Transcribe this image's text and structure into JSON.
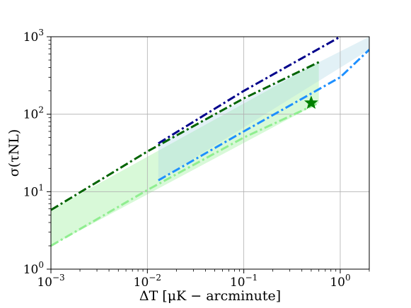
{
  "chart_data": {
    "type": "line",
    "xscale": "log",
    "yscale": "log",
    "xlim": [
      0.001,
      2
    ],
    "ylim": [
      1,
      1000
    ],
    "grid": true,
    "xlabel": "ΔT [μK − arcminute]",
    "ylabel": "σ(τNL)",
    "x_ticks": [
      {
        "value": 0.001,
        "base": "10",
        "exp": "−3"
      },
      {
        "value": 0.01,
        "base": "10",
        "exp": "−2"
      },
      {
        "value": 0.1,
        "base": "10",
        "exp": "−1"
      },
      {
        "value": 1,
        "base": "10",
        "exp": "0"
      }
    ],
    "y_ticks": [
      {
        "value": 1,
        "base": "10",
        "exp": "0"
      },
      {
        "value": 10,
        "base": "10",
        "exp": "1"
      },
      {
        "value": 100,
        "base": "10",
        "exp": "2"
      },
      {
        "value": 1000,
        "base": "10",
        "exp": "3"
      }
    ],
    "series": [
      {
        "color": "#006400",
        "style": "dash-dot",
        "x": [
          0.001,
          0.01,
          0.1,
          0.6
        ],
        "y": [
          5.8,
          33,
          160,
          470
        ]
      },
      {
        "color": "#90EE90",
        "style": "dash-dot",
        "x": [
          0.001,
          0.01,
          0.1,
          0.6
        ],
        "y": [
          2.0,
          10.5,
          50,
          140
        ]
      },
      {
        "color": "#00008B",
        "style": "dash-dot",
        "x": [
          0.013,
          0.1,
          1.0
        ],
        "y": [
          42,
          200,
          1000
        ]
      },
      {
        "color": "#1E90FF",
        "style": "dash-dot",
        "x": [
          0.013,
          0.1,
          1.0,
          2.0
        ],
        "y": [
          14,
          60,
          300,
          680
        ]
      }
    ],
    "bands": [
      {
        "color": "#90EE90",
        "opacity": 0.35,
        "x": [
          0.001,
          0.6
        ],
        "lower": [
          2.0,
          140
        ],
        "upper": [
          5.8,
          470
        ]
      },
      {
        "color": "#ADD8E6",
        "opacity": 0.35,
        "x": [
          0.013,
          2.0
        ],
        "lower": [
          14,
          680
        ],
        "upper": [
          42,
          1000
        ]
      }
    ],
    "markers": [
      {
        "shape": "star",
        "color": "#008000",
        "x": 0.5,
        "y": 140
      }
    ]
  }
}
